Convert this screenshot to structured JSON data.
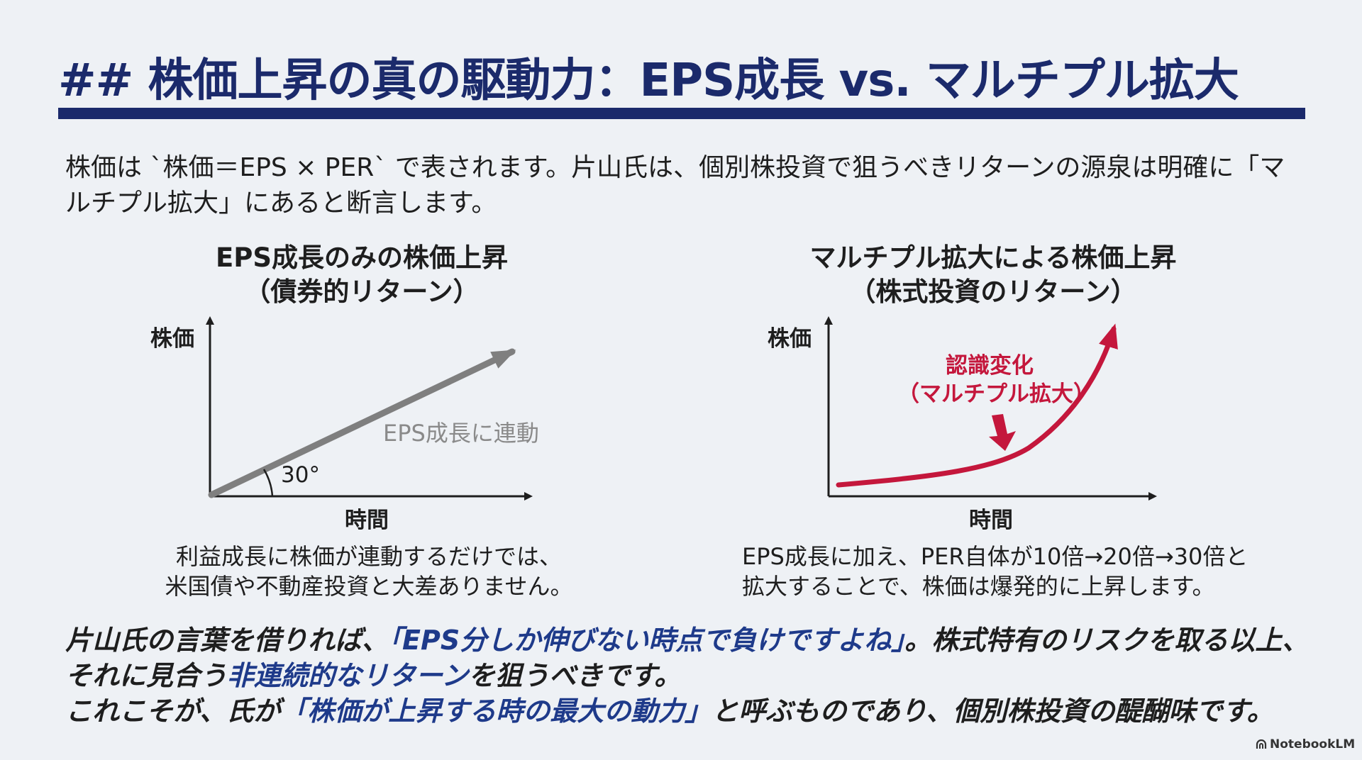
{
  "title": "## 株価上昇の真の駆動力：EPS成長 vs. マルチプル拡大",
  "intro": "株価は `株価＝EPS × PER` で表されます。片山氏は、個別株投資で狙うべきリターンの源泉は明確に「マルチプル拡大」にあると断言します。",
  "left_panel": {
    "title_line1": "EPS成長のみの株価上昇",
    "title_line2": "（債券的リターン）",
    "y_axis": "株価",
    "x_axis": "時間",
    "line_label": "EPS成長に連動",
    "angle_label": "30°",
    "caption_line1": "利益成長に株価が連動するだけでは、",
    "caption_line2": "米国債や不動産投資と大差ありません。",
    "line_color": "#7f7f7f"
  },
  "right_panel": {
    "title_line1": "マルチプル拡大による株価上昇",
    "title_line2": "（株式投資のリターン）",
    "y_axis": "株価",
    "x_axis": "時間",
    "annotation_line1": "認識変化",
    "annotation_line2": "（マルチプル拡大）",
    "caption_line1": "EPS成長に加え、PER自体が10倍→20倍→30倍と",
    "caption_line2": "拡大することで、株価は爆発的に上昇します。",
    "curve_color": "#c4173c"
  },
  "summary": {
    "p1": "片山氏の言葉を借りれば、",
    "p2": "「EPS分しか伸びない時点で負けですよね」",
    "p3": "。株式特有のリスクを取る以上、それに見合う",
    "p4": "非連続的なリターン",
    "p5": "を狙うべきです。",
    "p6": "これこそが、氏が",
    "p7": "「株価が上昇する時の最大の動力」",
    "p8": "と呼ぶものであり、個別株投資の醍醐味です。"
  },
  "logo": "NotebookLM",
  "colors": {
    "title": "#1b2a6b",
    "highlight": "#1e3a8a",
    "accent_red": "#c4173c",
    "background": "#eef1f5"
  }
}
